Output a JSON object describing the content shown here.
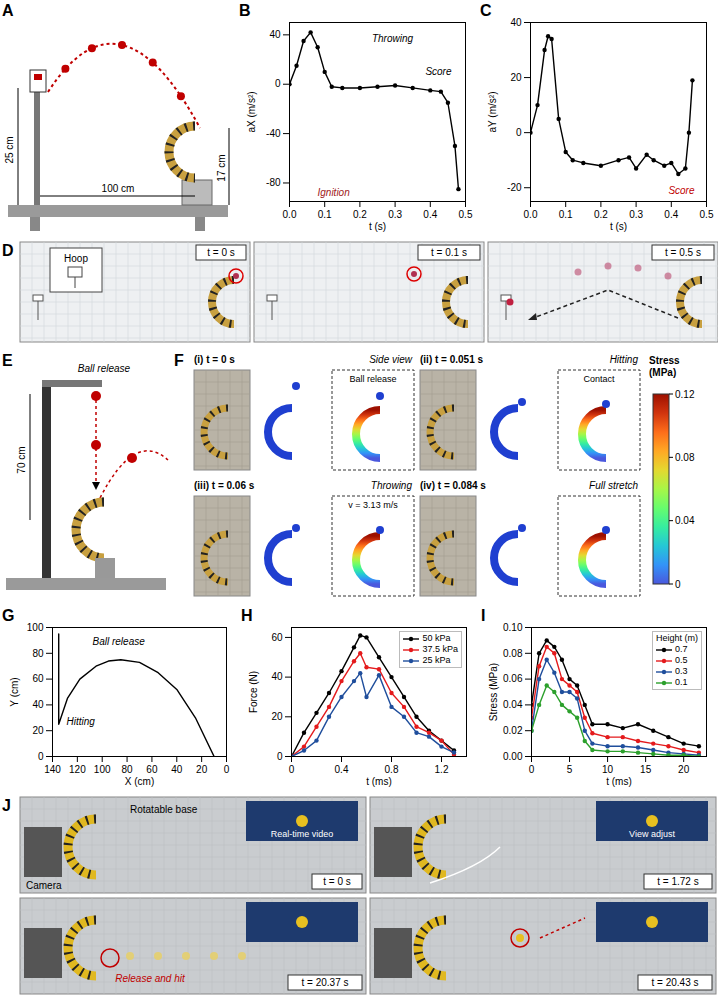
{
  "panels": {
    "A": {
      "letter": "A",
      "labels": [
        "25 cm",
        "100 cm",
        "17 cm"
      ]
    },
    "D": {
      "letter": "D",
      "frames": [
        "t = 0 s",
        "t = 0.1 s",
        "t = 0.5 s"
      ],
      "inset": "Hoop"
    },
    "E": {
      "letter": "E",
      "labels": [
        "Ball release",
        "70 cm"
      ]
    },
    "F": {
      "letter": "F",
      "frames": [
        {
          "id": "(i)",
          "time": "t = 0 s",
          "labels": [
            "Side view",
            "Ball release"
          ]
        },
        {
          "id": "(ii)",
          "time": "t = 0.051 s",
          "labels": [
            "Hitting",
            "Contact"
          ]
        },
        {
          "id": "(iii)",
          "time": "t = 0.06 s",
          "labels": [
            "Throwing",
            "v = 3.13 m/s"
          ]
        },
        {
          "id": "(iv)",
          "time": "t = 0.084 s",
          "labels": [
            "Full stretch"
          ]
        }
      ],
      "colorbar": {
        "label": "Stress (MPa)",
        "range": [
          0,
          0.12
        ],
        "ticks": [
          0,
          0.04,
          0.08,
          0.12
        ]
      }
    },
    "J": {
      "letter": "J",
      "frames": [
        {
          "time": "t = 0 s",
          "labels": [
            "Rotatable base",
            "Camera",
            "Real-time video"
          ]
        },
        {
          "time": "t = 1.72 s",
          "labels": [
            "View adjust"
          ]
        },
        {
          "time": "t = 20.37 s",
          "labels": [
            "Release and hit"
          ]
        },
        {
          "time": "t = 20.43 s"
        }
      ]
    }
  },
  "chart_data": [
    {
      "panel": "B",
      "type": "line",
      "x_label": "t (s)",
      "y_label": "aX (m/s²)",
      "xlim": [
        0,
        0.5
      ],
      "xticks": [
        {
          "value": 0,
          "label": "0.0"
        },
        0.1,
        0.2,
        0.3,
        0.4,
        0.5
      ],
      "ylim": [
        -95,
        50
      ],
      "yticks": [
        -80,
        -40,
        0,
        40
      ],
      "x": [
        0,
        0.02,
        0.04,
        0.06,
        0.08,
        0.1,
        0.12,
        0.15,
        0.2,
        0.25,
        0.3,
        0.35,
        0.4,
        0.43,
        0.45,
        0.47,
        0.48
      ],
      "values": [
        0,
        15,
        35,
        42,
        30,
        10,
        -2,
        -3,
        -3,
        -2,
        -1,
        -3,
        -5,
        -6,
        -15,
        -50,
        -85
      ],
      "color": "#000000",
      "marker": "circle",
      "annotations": [
        "Throwing",
        "Ignition",
        "Score"
      ]
    },
    {
      "panel": "C",
      "type": "line",
      "x_label": "t (s)",
      "y_label": "aY (m/s²)",
      "xlim": [
        0,
        0.5
      ],
      "xticks": [
        {
          "value": 0,
          "label": "0.0"
        },
        0.1,
        0.2,
        0.3,
        0.4,
        0.5
      ],
      "ylim": [
        -25,
        40
      ],
      "yticks": [
        -20,
        0,
        20,
        40
      ],
      "x": [
        0,
        0.02,
        0.04,
        0.05,
        0.06,
        0.08,
        0.1,
        0.12,
        0.15,
        0.2,
        0.25,
        0.28,
        0.3,
        0.33,
        0.35,
        0.38,
        0.4,
        0.42,
        0.44,
        0.45,
        0.46
      ],
      "values": [
        0,
        10,
        30,
        35,
        34,
        5,
        -7,
        -10,
        -11,
        -12,
        -10,
        -9,
        -13,
        -8,
        -10,
        -12,
        -11,
        -15,
        -13,
        0,
        19
      ],
      "color": "#000000",
      "marker": "circle",
      "annotations": [
        "Score"
      ]
    },
    {
      "panel": "G",
      "type": "line",
      "x_label": "X (cm)",
      "y_label": "Y (cm)",
      "xlim": [
        140,
        0
      ],
      "xticks": [
        140,
        120,
        100,
        80,
        60,
        40,
        20,
        0
      ],
      "ylim": [
        0,
        100
      ],
      "yticks": [
        0,
        20,
        40,
        60,
        80,
        100
      ],
      "x": [
        135,
        135,
        128,
        118,
        105,
        95,
        85,
        70,
        55,
        40,
        25,
        10
      ],
      "values": [
        95,
        25,
        45,
        60,
        70,
        74,
        75,
        73,
        65,
        52,
        30,
        0
      ],
      "color": "#000000",
      "annotations": [
        "Ball release",
        "Hitting"
      ]
    },
    {
      "panel": "H",
      "type": "line",
      "x_label": "t (ms)",
      "y_label": "Force (N)",
      "xlim": [
        0,
        1.4
      ],
      "xticks": [
        0,
        0.4,
        0.8,
        1.2
      ],
      "ylim": [
        0,
        65
      ],
      "yticks": [
        0,
        20,
        40,
        60
      ],
      "legend": "top-right",
      "marker": "circle",
      "x": [
        0,
        0.1,
        0.2,
        0.3,
        0.4,
        0.5,
        0.55,
        0.6,
        0.7,
        0.8,
        0.9,
        1.0,
        1.1,
        1.2,
        1.3
      ],
      "series": [
        {
          "name": "50 kPa",
          "color": "#000000",
          "values": [
            0,
            12,
            22,
            32,
            43,
            55,
            61,
            60,
            50,
            40,
            30,
            20,
            13,
            8,
            3
          ]
        },
        {
          "name": "37.5 kPa",
          "color": "#e41a1c",
          "values": [
            0,
            5,
            15,
            25,
            38,
            48,
            52,
            45,
            44,
            32,
            25,
            15,
            12,
            8,
            1
          ]
        },
        {
          "name": "25 kPa",
          "color": "#1f4e9c",
          "values": [
            0,
            3,
            8,
            20,
            30,
            38,
            42,
            30,
            41,
            25,
            20,
            12,
            10,
            5,
            2
          ]
        }
      ]
    },
    {
      "panel": "I",
      "type": "line",
      "x_label": "t (ms)",
      "y_label": "Stress (MPa)",
      "xlim": [
        0,
        23
      ],
      "xticks": [
        0,
        5,
        10,
        15,
        20
      ],
      "ylim": [
        0,
        0.1
      ],
      "yticks": [
        {
          "value": 0,
          "label": "0.00"
        },
        {
          "value": 0.02,
          "label": "0.02"
        },
        {
          "value": 0.04,
          "label": "0.04"
        },
        {
          "value": 0.06,
          "label": "0.06"
        },
        {
          "value": 0.08,
          "label": "0.08"
        },
        {
          "value": 0.1,
          "label": "0.10"
        }
      ],
      "legend": "top-right",
      "legend_title": "Height (m)",
      "marker": "circle",
      "x": [
        0,
        1,
        2,
        3,
        4,
        5,
        6,
        7,
        8,
        10,
        12,
        14,
        16,
        18,
        20,
        22
      ],
      "series": [
        {
          "name": "0.7",
          "color": "#000000",
          "values": [
            0.04,
            0.08,
            0.09,
            0.085,
            0.075,
            0.06,
            0.055,
            0.04,
            0.025,
            0.025,
            0.022,
            0.025,
            0.02,
            0.015,
            0.01,
            0.008
          ]
        },
        {
          "name": "0.5",
          "color": "#e41a1c",
          "values": [
            0.03,
            0.07,
            0.085,
            0.08,
            0.06,
            0.055,
            0.05,
            0.03,
            0.018,
            0.015,
            0.015,
            0.012,
            0.01,
            0.008,
            0.005,
            0.003
          ]
        },
        {
          "name": "0.3",
          "color": "#1f4e9c",
          "values": [
            0.02,
            0.06,
            0.075,
            0.065,
            0.05,
            0.05,
            0.045,
            0.02,
            0.01,
            0.008,
            0.008,
            0.007,
            0.005,
            0.003,
            0.002,
            0.001
          ]
        },
        {
          "name": "0.1",
          "color": "#2ca02c",
          "values": [
            0.02,
            0.04,
            0.055,
            0.05,
            0.04,
            0.035,
            0.03,
            0.012,
            0.005,
            0.004,
            0.004,
            0.003,
            0.002,
            0.001,
            0.001,
            0
          ]
        }
      ]
    }
  ]
}
